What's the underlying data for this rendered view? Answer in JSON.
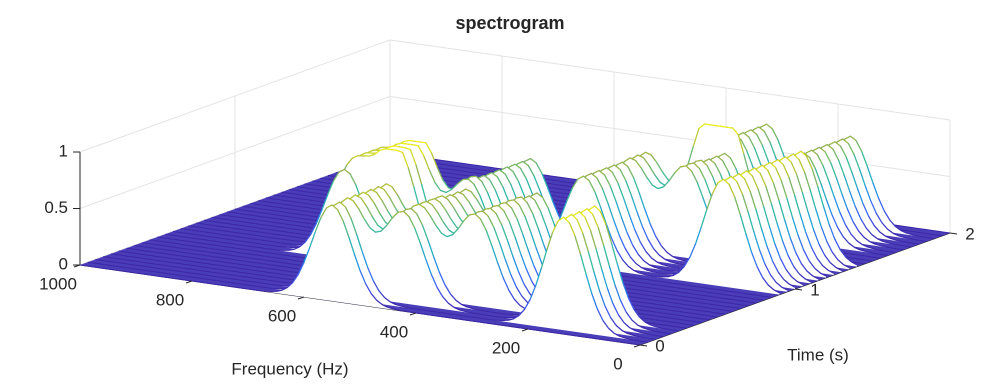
{
  "chart_data": {
    "type": "waterfall3d",
    "title": "spectrogram",
    "xlabel": "Frequency (Hz)",
    "ylabel": "Time (s)",
    "xlim": [
      0,
      1000
    ],
    "xticks": [
      0,
      200,
      400,
      600,
      800,
      1000
    ],
    "ylim": [
      0,
      2
    ],
    "yticks": [
      0,
      1,
      2
    ],
    "zlim": [
      0,
      1
    ],
    "zticks": [
      0,
      0.5,
      1
    ],
    "grid": true,
    "colormap": "parula",
    "peaks": [
      {
        "freq": 550,
        "t0": 0.0,
        "t1": 0.35,
        "amp": 0.85
      },
      {
        "freq": 450,
        "t0": 0.1,
        "t1": 0.5,
        "amp": 0.8
      },
      {
        "freq": 350,
        "t0": 0.2,
        "t1": 0.6,
        "amp": 0.8
      },
      {
        "freq": 150,
        "t0": 0.05,
        "t1": 0.25,
        "amp": 1.0
      },
      {
        "freq": 600,
        "t0": 0.6,
        "t1": 0.75,
        "amp": 1.0
      },
      {
        "freq": 680,
        "t0": 0.55,
        "t1": 0.75,
        "amp": 0.8
      },
      {
        "freq": 500,
        "t0": 0.7,
        "t1": 1.1,
        "amp": 0.75
      },
      {
        "freq": 350,
        "t0": 0.9,
        "t1": 1.3,
        "amp": 0.8
      },
      {
        "freq": 250,
        "t0": 1.2,
        "t1": 1.5,
        "amp": 0.8
      },
      {
        "freq": 100,
        "t0": 0.9,
        "t1": 1.4,
        "amp": 0.95
      },
      {
        "freq": 300,
        "t0": 1.5,
        "t1": 1.9,
        "amp": 0.8
      },
      {
        "freq": 150,
        "t0": 1.6,
        "t1": 1.9,
        "amp": 0.8
      }
    ]
  }
}
